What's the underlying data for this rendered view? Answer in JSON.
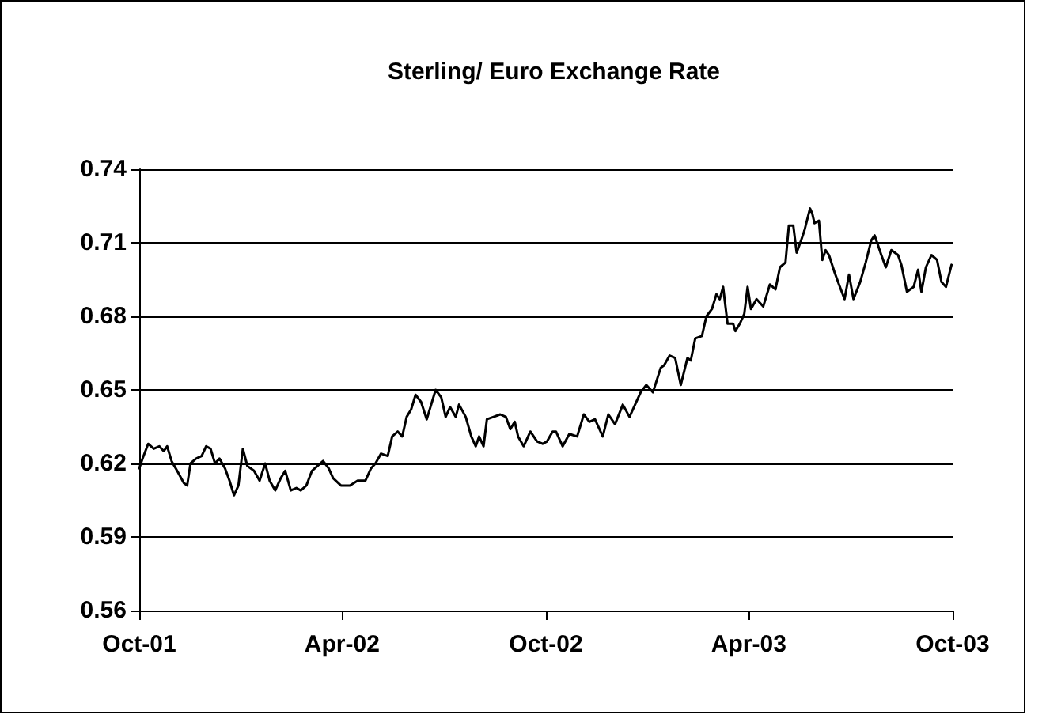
{
  "chart_data": {
    "type": "line",
    "title": "Sterling/ Euro Exchange Rate",
    "x": [
      "2001-10-01",
      "2001-10-04",
      "2001-10-09",
      "2001-10-14",
      "2001-10-19",
      "2001-10-23",
      "2001-10-26",
      "2001-10-30",
      "2001-11-04",
      "2001-11-10",
      "2001-11-13",
      "2001-11-16",
      "2001-11-21",
      "2001-11-26",
      "2001-11-30",
      "2001-12-04",
      "2001-12-08",
      "2001-12-12",
      "2001-12-17",
      "2001-12-21",
      "2001-12-25",
      "2001-12-29",
      "2002-01-02",
      "2002-01-06",
      "2002-01-12",
      "2002-01-17",
      "2002-01-22",
      "2002-01-26",
      "2002-01-31",
      "2002-02-05",
      "2002-02-09",
      "2002-02-14",
      "2002-02-19",
      "2002-02-23",
      "2002-02-28",
      "2002-03-05",
      "2002-03-10",
      "2002-03-15",
      "2002-03-20",
      "2002-03-24",
      "2002-03-31",
      "2002-04-08",
      "2002-04-15",
      "2002-04-22",
      "2002-04-27",
      "2002-05-01",
      "2002-05-06",
      "2002-05-12",
      "2002-05-16",
      "2002-05-21",
      "2002-05-25",
      "2002-05-29",
      "2002-06-02",
      "2002-06-06",
      "2002-06-11",
      "2002-06-16",
      "2002-06-20",
      "2002-06-24",
      "2002-06-29",
      "2002-07-03",
      "2002-07-07",
      "2002-07-12",
      "2002-07-15",
      "2002-07-21",
      "2002-07-26",
      "2002-07-30",
      "2002-08-02",
      "2002-08-06",
      "2002-08-09",
      "2002-08-15",
      "2002-08-21",
      "2002-08-26",
      "2002-08-30",
      "2002-09-03",
      "2002-09-06",
      "2002-09-11",
      "2002-09-17",
      "2002-09-23",
      "2002-09-28",
      "2002-10-02",
      "2002-10-07",
      "2002-10-10",
      "2002-10-16",
      "2002-10-22",
      "2002-10-29",
      "2002-11-04",
      "2002-11-09",
      "2002-11-14",
      "2002-11-21",
      "2002-11-26",
      "2002-12-02",
      "2002-12-09",
      "2002-12-15",
      "2002-12-20",
      "2002-12-25",
      "2002-12-30",
      "2003-01-05",
      "2003-01-12",
      "2003-01-15",
      "2003-01-20",
      "2003-01-25",
      "2003-01-30",
      "2003-02-05",
      "2003-02-08",
      "2003-02-12",
      "2003-02-18",
      "2003-02-22",
      "2003-02-27",
      "2003-03-03",
      "2003-03-06",
      "2003-03-09",
      "2003-03-13",
      "2003-03-18",
      "2003-03-20",
      "2003-03-24",
      "2003-03-28",
      "2003-03-31",
      "2003-04-03",
      "2003-04-08",
      "2003-04-14",
      "2003-04-20",
      "2003-04-25",
      "2003-04-29",
      "2003-05-04",
      "2003-05-07",
      "2003-05-11",
      "2003-05-14",
      "2003-05-18",
      "2003-05-21",
      "2003-05-26",
      "2003-05-28",
      "2003-05-30",
      "2003-06-03",
      "2003-06-06",
      "2003-06-09",
      "2003-06-12",
      "2003-06-17",
      "2003-06-21",
      "2003-06-26",
      "2003-06-30",
      "2003-07-04",
      "2003-07-10",
      "2003-07-15",
      "2003-07-20",
      "2003-07-23",
      "2003-07-29",
      "2003-08-02",
      "2003-08-07",
      "2003-08-13",
      "2003-08-16",
      "2003-08-21",
      "2003-08-27",
      "2003-08-31",
      "2003-09-03",
      "2003-09-07",
      "2003-09-12",
      "2003-09-17",
      "2003-09-21",
      "2003-09-25",
      "2003-09-30",
      "2003-10-01"
    ],
    "series": [
      {
        "color": "#000000",
        "values": [
          0.618,
          0.622,
          0.628,
          0.626,
          0.627,
          0.625,
          0.627,
          0.621,
          0.617,
          0.612,
          0.611,
          0.62,
          0.622,
          0.623,
          0.627,
          0.626,
          0.62,
          0.622,
          0.618,
          0.613,
          0.607,
          0.611,
          0.626,
          0.619,
          0.617,
          0.613,
          0.62,
          0.613,
          0.609,
          0.614,
          0.617,
          0.609,
          0.61,
          0.609,
          0.611,
          0.617,
          0.619,
          0.621,
          0.618,
          0.614,
          0.611,
          0.611,
          0.613,
          0.613,
          0.618,
          0.62,
          0.624,
          0.623,
          0.631,
          0.633,
          0.631,
          0.639,
          0.642,
          0.648,
          0.645,
          0.638,
          0.644,
          0.65,
          0.647,
          0.639,
          0.643,
          0.639,
          0.644,
          0.639,
          0.631,
          0.627,
          0.631,
          0.627,
          0.638,
          0.639,
          0.64,
          0.639,
          0.634,
          0.637,
          0.631,
          0.627,
          0.633,
          0.629,
          0.628,
          0.629,
          0.633,
          0.633,
          0.627,
          0.632,
          0.631,
          0.64,
          0.637,
          0.638,
          0.631,
          0.64,
          0.636,
          0.644,
          0.639,
          0.644,
          0.649,
          0.652,
          0.649,
          0.659,
          0.66,
          0.664,
          0.663,
          0.652,
          0.663,
          0.662,
          0.671,
          0.672,
          0.68,
          0.683,
          0.689,
          0.687,
          0.692,
          0.677,
          0.677,
          0.674,
          0.677,
          0.681,
          0.692,
          0.683,
          0.687,
          0.684,
          0.693,
          0.691,
          0.7,
          0.702,
          0.717,
          0.717,
          0.706,
          0.711,
          0.715,
          0.724,
          0.722,
          0.718,
          0.719,
          0.703,
          0.707,
          0.705,
          0.698,
          0.693,
          0.687,
          0.697,
          0.687,
          0.694,
          0.702,
          0.711,
          0.713,
          0.705,
          0.7,
          0.707,
          0.705,
          0.701,
          0.69,
          0.692,
          0.699,
          0.69,
          0.7,
          0.705,
          0.703,
          0.694,
          0.692,
          0.701,
          0.701
        ]
      }
    ],
    "xlim": [
      "2001-10-01",
      "2003-10-01"
    ],
    "xticks": [
      {
        "value": "2001-10-01",
        "label": "Oct-01"
      },
      {
        "value": "2002-04-01",
        "label": "Apr-02"
      },
      {
        "value": "2002-10-01",
        "label": "Oct-02"
      },
      {
        "value": "2003-04-01",
        "label": "Apr-03"
      },
      {
        "value": "2003-10-01",
        "label": "Oct-03"
      }
    ],
    "ylim": [
      0.56,
      0.74
    ],
    "yticks": [
      0.56,
      0.59,
      0.62,
      0.65,
      0.68,
      0.71,
      0.74
    ],
    "grid": "y",
    "marker": "none",
    "line_style": "solid"
  }
}
